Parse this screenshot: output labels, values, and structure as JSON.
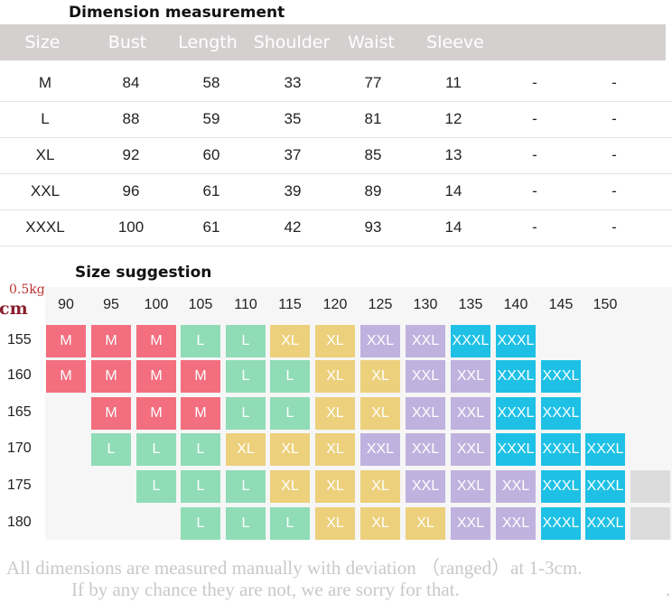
{
  "dimension": {
    "title": "Dimension measurement",
    "headers": [
      "Size",
      "Bust",
      "Length",
      "Shoulder",
      "Waist",
      "Sleeve"
    ],
    "rows": [
      [
        "M",
        "84",
        "58",
        "33",
        "77",
        "11",
        "-",
        "-"
      ],
      [
        "L",
        "88",
        "59",
        "35",
        "81",
        "12",
        "-",
        "-"
      ],
      [
        "XL",
        "92",
        "60",
        "37",
        "85",
        "13",
        "-",
        "-"
      ],
      [
        "XXL",
        "96",
        "61",
        "39",
        "89",
        "14",
        "-",
        "-"
      ],
      [
        "XXXL",
        "100",
        "61",
        "42",
        "93",
        "14",
        "-",
        "-"
      ]
    ]
  },
  "suggestion": {
    "title": "Size suggestion",
    "weight_unit": "0.5kg",
    "height_unit": "cm",
    "weights": [
      "90",
      "95",
      "100",
      "105",
      "110",
      "115",
      "120",
      "125",
      "130",
      "135",
      "140",
      "145",
      "150"
    ],
    "heights": [
      "155",
      "160",
      "165",
      "170",
      "175",
      "180"
    ],
    "grid": [
      [
        "M",
        "M",
        "M",
        "L",
        "L",
        "XL",
        "XL",
        "XXL",
        "XXL",
        "XXXL",
        "XXXL",
        "",
        ""
      ],
      [
        "M",
        "M",
        "M",
        "M",
        "L",
        "L",
        "XL",
        "XL",
        "XXL",
        "XXL",
        "XXXL",
        "XXXL",
        ""
      ],
      [
        "",
        "M",
        "M",
        "M",
        "L",
        "L",
        "XL",
        "XL",
        "XXL",
        "XXL",
        "XXXL",
        "XXXL",
        ""
      ],
      [
        "",
        "L",
        "L",
        "L",
        "XL",
        "XL",
        "XL",
        "XXL",
        "XXL",
        "XXL",
        "XXXL",
        "XXXL",
        "XXXL"
      ],
      [
        "",
        "",
        "L",
        "L",
        "L",
        "XL",
        "XL",
        "XL",
        "XXL",
        "XXL",
        "XXL",
        "XXXL",
        "XXXL"
      ],
      [
        "",
        "",
        "",
        "L",
        "L",
        "L",
        "XL",
        "XL",
        "XL",
        "XXL",
        "XXL",
        "XXXL",
        "XXXL"
      ]
    ],
    "colors": {
      "M": "#f36e7f",
      "L": "#8fdcb7",
      "XL": "#ecd07c",
      "XXL": "#bfb2de",
      "XXXL": "#1ec1e5"
    }
  },
  "footnote": {
    "line1": "All dimensions are measured manually with deviation （ranged）at 1-3cm.",
    "line2": "If by any chance they are not, we are sorry for that."
  }
}
